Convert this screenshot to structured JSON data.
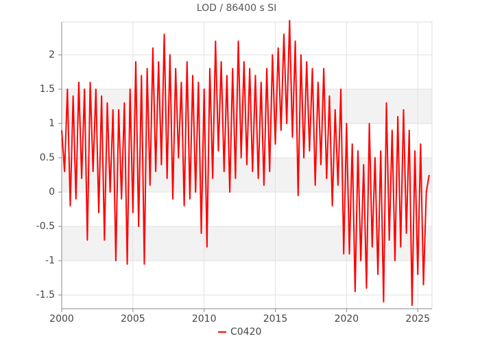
{
  "chart_data": {
    "type": "line",
    "title": "LOD / 86400 s SI",
    "xlim": [
      2000,
      2026
    ],
    "xticks": [
      2000,
      2005,
      2010,
      2015,
      2020,
      2025
    ],
    "ylim": [
      -1.7,
      2.48
    ],
    "yticks": [
      -1.5,
      -1,
      -0.5,
      0,
      0.5,
      1,
      1.5,
      2
    ],
    "grid": true,
    "bands": true,
    "legend": "bottom",
    "x": [
      2000.0,
      2000.2,
      2000.4,
      2000.6,
      2000.8,
      2001.0,
      2001.2,
      2001.4,
      2001.6,
      2001.8,
      2002.0,
      2002.2,
      2002.4,
      2002.6,
      2002.8,
      2003.0,
      2003.2,
      2003.4,
      2003.6,
      2003.8,
      2004.0,
      2004.2,
      2004.4,
      2004.6,
      2004.8,
      2005.0,
      2005.2,
      2005.4,
      2005.6,
      2005.8,
      2006.0,
      2006.2,
      2006.4,
      2006.6,
      2006.8,
      2007.0,
      2007.2,
      2007.4,
      2007.6,
      2007.8,
      2008.0,
      2008.2,
      2008.4,
      2008.6,
      2008.8,
      2009.0,
      2009.2,
      2009.4,
      2009.6,
      2009.8,
      2010.0,
      2010.2,
      2010.4,
      2010.6,
      2010.8,
      2011.0,
      2011.2,
      2011.4,
      2011.6,
      2011.8,
      2012.0,
      2012.2,
      2012.4,
      2012.6,
      2012.8,
      2013.0,
      2013.2,
      2013.4,
      2013.6,
      2013.8,
      2014.0,
      2014.2,
      2014.4,
      2014.6,
      2014.8,
      2015.0,
      2015.2,
      2015.4,
      2015.6,
      2015.8,
      2016.0,
      2016.2,
      2016.4,
      2016.6,
      2016.8,
      2017.0,
      2017.2,
      2017.4,
      2017.6,
      2017.8,
      2018.0,
      2018.2,
      2018.4,
      2018.6,
      2018.8,
      2019.0,
      2019.2,
      2019.4,
      2019.6,
      2019.8,
      2020.0,
      2020.2,
      2020.4,
      2020.6,
      2020.8,
      2021.0,
      2021.2,
      2021.4,
      2021.6,
      2021.8,
      2022.0,
      2022.2,
      2022.4,
      2022.6,
      2022.8,
      2023.0,
      2023.2,
      2023.4,
      2023.6,
      2023.8,
      2024.0,
      2024.2,
      2024.4,
      2024.6,
      2024.8,
      2025.0,
      2025.2,
      2025.4,
      2025.6,
      2025.8
    ],
    "series": [
      {
        "name": "C0420",
        "color": "#ff0000",
        "values": [
          0.9,
          0.3,
          1.5,
          -0.2,
          1.4,
          -0.1,
          1.6,
          0.2,
          1.5,
          -0.7,
          1.6,
          0.3,
          1.5,
          -0.3,
          1.4,
          -0.7,
          1.3,
          0.0,
          1.2,
          -1.0,
          1.2,
          -0.1,
          1.3,
          -1.05,
          1.5,
          -0.3,
          1.9,
          -0.5,
          1.7,
          -1.05,
          1.8,
          0.1,
          2.1,
          0.3,
          1.9,
          0.4,
          2.3,
          0.2,
          2.0,
          -0.1,
          1.8,
          0.5,
          1.6,
          -0.2,
          1.9,
          -0.1,
          1.7,
          0.0,
          1.6,
          -0.6,
          1.5,
          -0.8,
          1.8,
          0.2,
          2.2,
          0.6,
          1.9,
          0.3,
          1.7,
          0.0,
          1.8,
          0.2,
          2.2,
          0.5,
          1.9,
          0.4,
          1.8,
          0.3,
          1.7,
          0.2,
          1.6,
          0.1,
          1.8,
          0.3,
          2.0,
          0.7,
          2.1,
          0.9,
          2.3,
          1.0,
          2.5,
          0.8,
          2.2,
          -0.05,
          2.0,
          0.5,
          1.9,
          0.6,
          1.8,
          0.1,
          1.6,
          0.4,
          1.8,
          0.2,
          1.4,
          -0.2,
          1.2,
          0.1,
          1.5,
          -0.9,
          1.0,
          -0.9,
          0.7,
          -1.45,
          0.6,
          -1.0,
          0.4,
          -1.4,
          1.0,
          -0.8,
          0.5,
          -1.2,
          0.6,
          -1.6,
          1.3,
          -0.7,
          0.9,
          -1.0,
          1.1,
          -0.8,
          1.2,
          -0.6,
          0.9,
          -1.65,
          0.6,
          -1.2,
          0.7,
          -1.35,
          0.0,
          0.25
        ]
      }
    ]
  }
}
